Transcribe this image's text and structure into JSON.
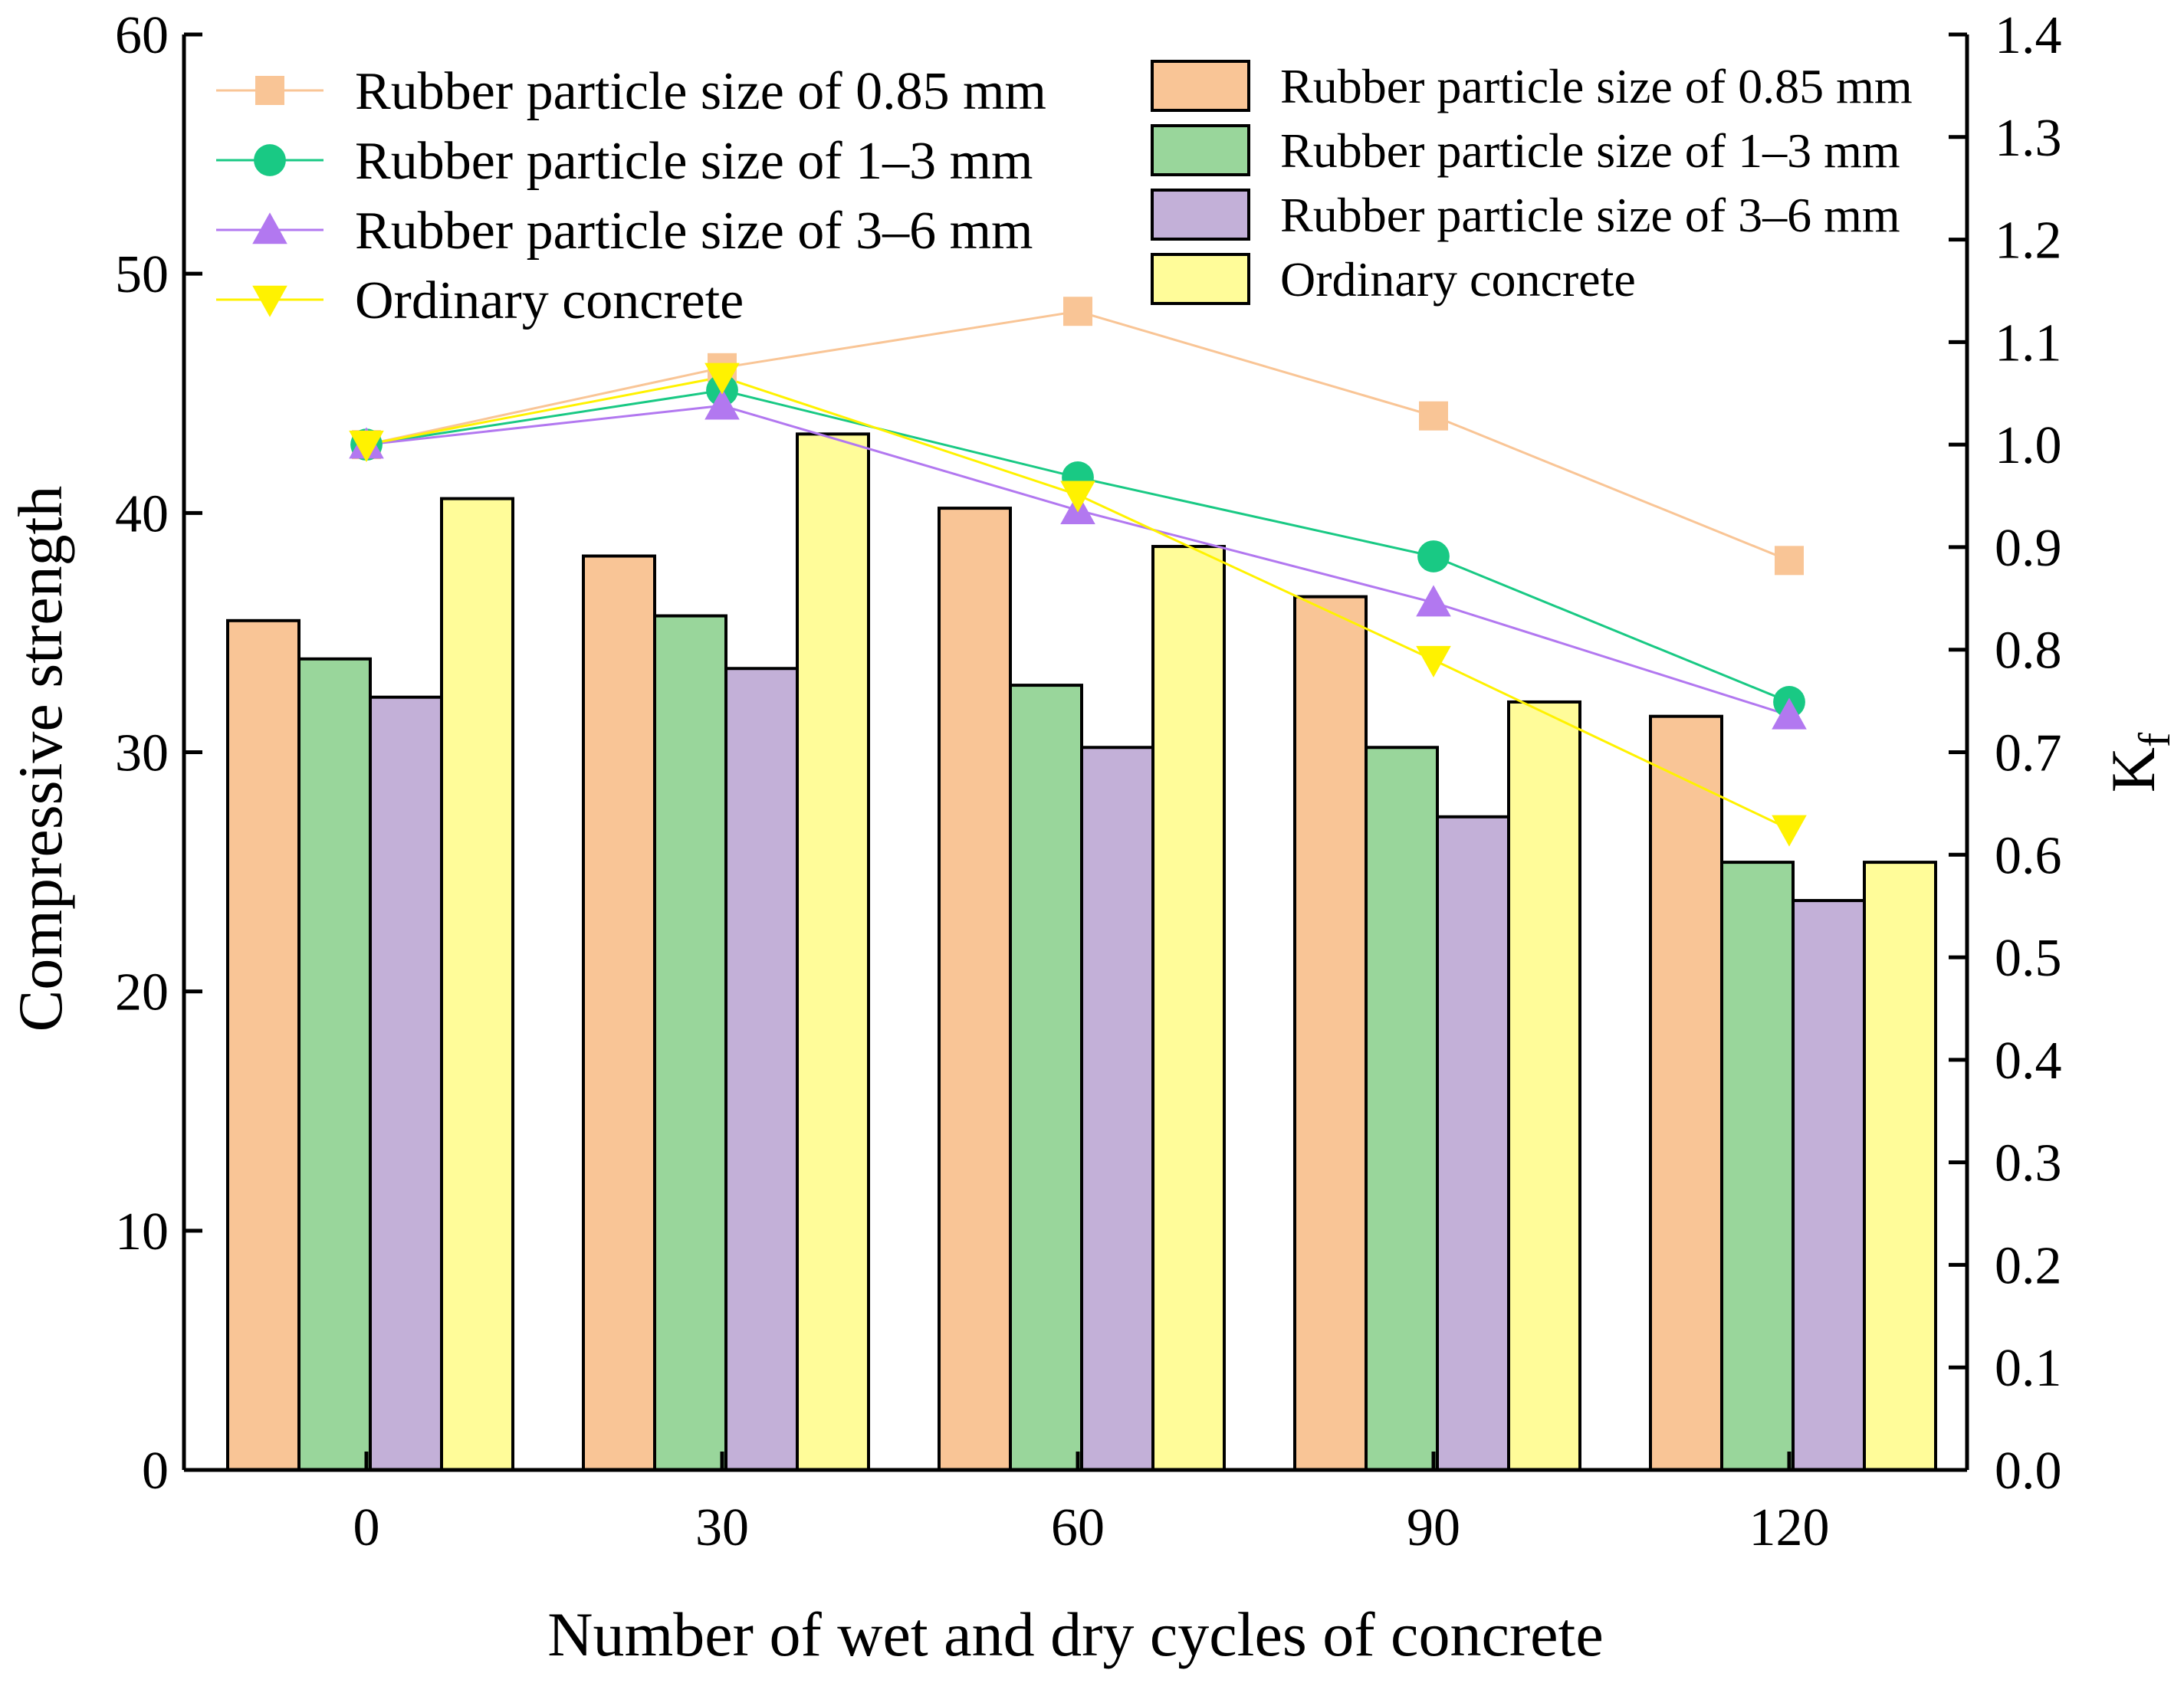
{
  "chart_data": {
    "type": "bar+line",
    "categories": [
      "0",
      "30",
      "60",
      "90",
      "120"
    ],
    "xlabel": "Number of wet and dry cycles of concrete",
    "ylabel_left": "Compressive strength",
    "ylabel_right_main": "K",
    "ylabel_right_sub": "f",
    "ylim_left": [
      0,
      60
    ],
    "ylim_right": [
      0.0,
      1.4
    ],
    "yticks_left": [
      "0",
      "10",
      "20",
      "30",
      "40",
      "50",
      "60"
    ],
    "yticks_right": [
      "0.0",
      "0.1",
      "0.2",
      "0.3",
      "0.4",
      "0.5",
      "0.6",
      "0.7",
      "0.8",
      "0.9",
      "1.0",
      "1.1",
      "1.2",
      "1.3",
      "1.4"
    ],
    "bar_series": [
      {
        "name": "Rubber particle size of 0.85 mm",
        "color": "#F9C596",
        "values": [
          35.5,
          38.2,
          40.2,
          36.5,
          31.5
        ]
      },
      {
        "name": "Rubber particle size of 1–3  mm",
        "color": "#99D69B",
        "values": [
          33.9,
          35.7,
          32.8,
          30.2,
          25.4
        ]
      },
      {
        "name": "Rubber particle size of 3–6  mm",
        "color": "#C3B0D8",
        "values": [
          32.3,
          33.5,
          30.2,
          27.3,
          23.8
        ]
      },
      {
        "name": "Ordinary concrete",
        "color": "#FFFC99",
        "values": [
          40.6,
          43.3,
          38.6,
          32.1,
          25.4
        ]
      }
    ],
    "line_series": [
      {
        "name": "Rubber particle size of 0.85 mm",
        "color": "#F9C596",
        "marker": "square",
        "values": [
          1.0,
          1.075,
          1.13,
          1.028,
          0.887
        ]
      },
      {
        "name": "Rubber particle size of 1–3  mm",
        "color": "#19C984",
        "marker": "circle",
        "values": [
          1.0,
          1.053,
          0.968,
          0.891,
          0.749
        ]
      },
      {
        "name": "Rubber particle size of 3–6  mm",
        "color": "#B278F0",
        "marker": "triangle-up",
        "values": [
          1.0,
          1.038,
          0.936,
          0.846,
          0.736
        ]
      },
      {
        "name": "Ordinary concrete",
        "color": "#FFF200",
        "marker": "triangle-down",
        "values": [
          1.0,
          1.066,
          0.951,
          0.79,
          0.625
        ]
      }
    ]
  }
}
